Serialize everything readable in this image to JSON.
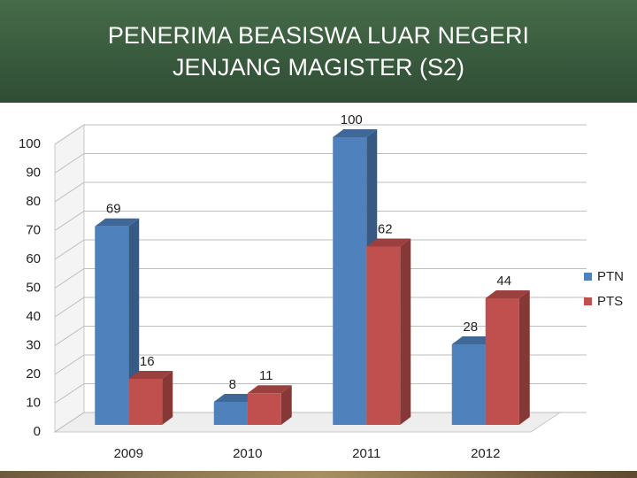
{
  "chart_data": {
    "type": "bar3d",
    "title": [
      "PENERIMA BEASISWA LUAR NEGERI",
      "JENJANG MAGISTER (S2)"
    ],
    "categories": [
      "2009",
      "2010",
      "2011",
      "2012"
    ],
    "series": [
      {
        "name": "PTN",
        "color": "#4f81bd",
        "values": [
          69,
          8,
          100,
          28
        ]
      },
      {
        "name": "PTS",
        "color": "#c0504d",
        "values": [
          16,
          11,
          62,
          44
        ]
      }
    ],
    "ylim": [
      0,
      100
    ],
    "yticks": [
      0,
      10,
      20,
      30,
      40,
      50,
      60,
      70,
      80,
      90,
      100
    ],
    "grid": true,
    "legend": "right"
  }
}
